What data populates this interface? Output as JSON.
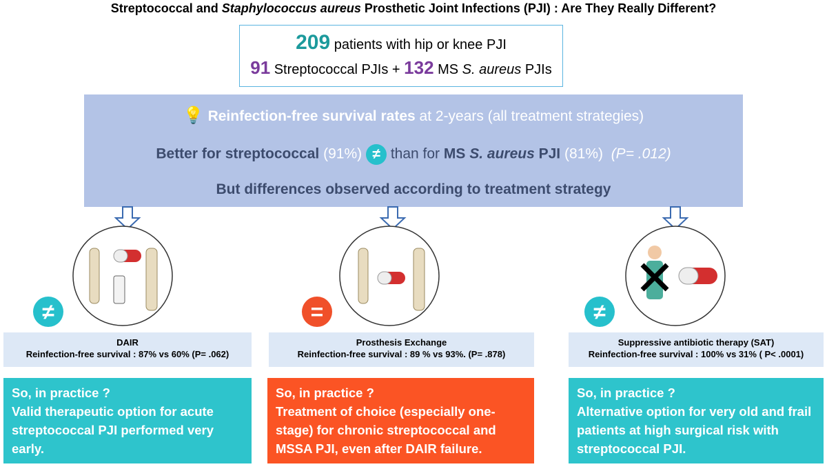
{
  "title": {
    "part1": "Streptococcal and",
    "italic": "Staphylococcus aureus",
    "part2": "Prosthetic Joint Infections (PJI) : Are They Really Different?"
  },
  "cohort": {
    "total": 209,
    "total_text": "patients with hip or knee PJI",
    "strep": 91,
    "strep_text": "Streptococcal PJIs +",
    "staph": 132,
    "staph_prefix": "MS",
    "staph_italic": "S. aureus",
    "staph_suffix": "PJIs"
  },
  "summary": {
    "line1": {
      "bold": "Reinfection-free survival rates",
      "rest": "at 2-years (all treatment strategies)"
    },
    "line2": {
      "strep": "Better for streptococcal",
      "strep_rate": "(91%)",
      "symbol": "≠",
      "than": "than for",
      "staph_prefix": "MS",
      "staph_italic": "S. aureus",
      "staph_suffix": "PJI",
      "staph_rate": "(81%)",
      "p": "(P= .012)"
    },
    "line3": "But differences observed according to treatment strategy"
  },
  "strategies": [
    {
      "symbol": "≠",
      "name": "DAIR",
      "result": "Reinfection-free survival : 87% vs 60% (P= .062)",
      "practice_heading": "So, in practice ?",
      "practice": "Valid therapeutic option for acute streptococcal PJI performed very early."
    },
    {
      "symbol": "=",
      "name": "Prosthesis Exchange",
      "result": "Reinfection-free survival : 89 % vs 93%. (P= .878)",
      "practice_heading": "So, in practice ?",
      "practice": "Treatment of choice (especially one-stage) for chronic streptococcal and MSSA PJI, even after DAIR failure."
    },
    {
      "symbol": "≠",
      "name": "Suppressive antibiotic therapy (SAT)",
      "result": "Reinfection-free survival : 100% vs 31% ( P< .0001)",
      "practice_heading": "So, in practice ?",
      "practice": "Alternative option for very old and frail patients at high surgical risk with streptococcal PJI."
    }
  ]
}
